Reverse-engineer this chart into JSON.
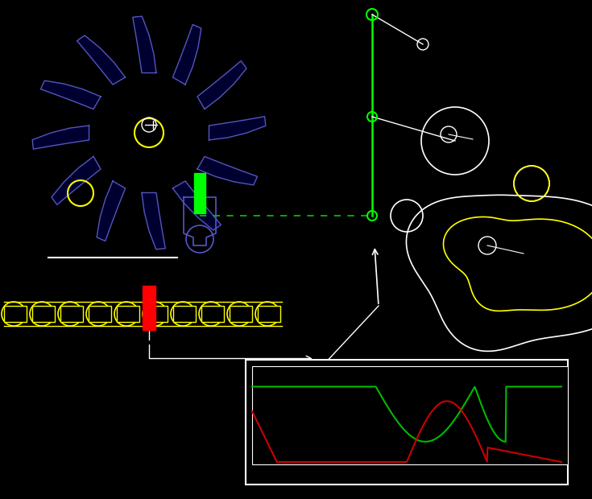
{
  "bg_color": "#000000",
  "fig_width": 7.35,
  "fig_height": 6.2,
  "dpi": 100
}
